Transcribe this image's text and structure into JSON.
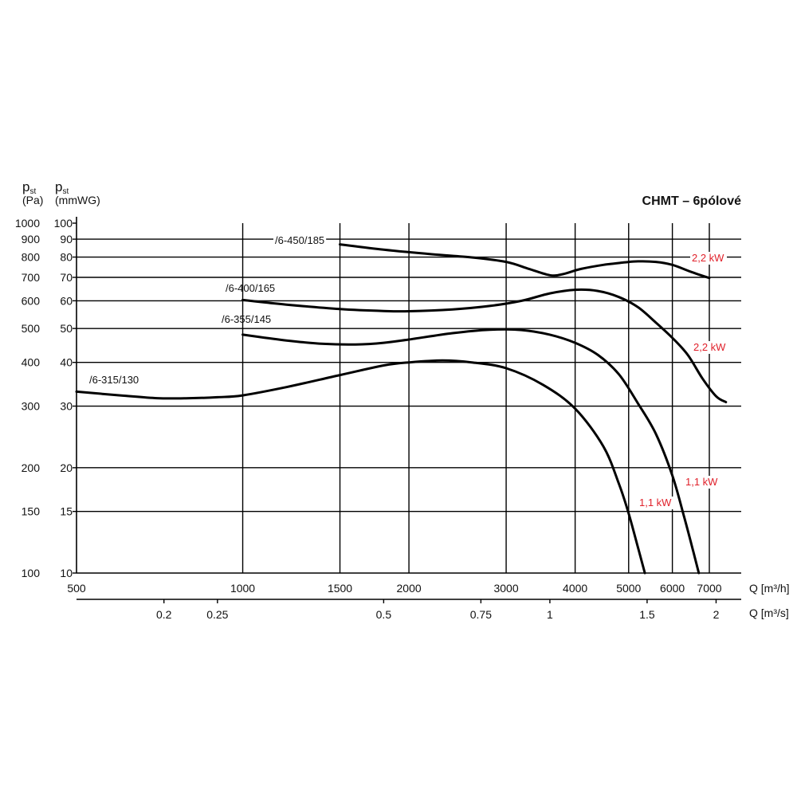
{
  "chart_data": {
    "type": "line",
    "title": "CHMT – 6pólové",
    "y_label_pa": {
      "main": "p",
      "sub": "st",
      "unit": "(Pa)"
    },
    "y_label_mmwg": {
      "main": "p",
      "sub": "st",
      "unit": "(mmWG)"
    },
    "x_label_m3h": "Q [m³/h]",
    "x_label_m3s": "Q [m³/s]",
    "x_scale": "log",
    "y_scale": "log",
    "xlim": [
      500,
      7000
    ],
    "ylim": [
      100,
      1000
    ],
    "grid": true,
    "x_ticks_m3h": [
      {
        "value": 500,
        "label": "500"
      },
      {
        "value": 1000,
        "label": "1000"
      },
      {
        "value": 1500,
        "label": "1500"
      },
      {
        "value": 2000,
        "label": "2000"
      },
      {
        "value": 3000,
        "label": "3000"
      },
      {
        "value": 4000,
        "label": "4000"
      },
      {
        "value": 5000,
        "label": "5000"
      },
      {
        "value": 6000,
        "label": "6000"
      },
      {
        "value": 7000,
        "label": "7000"
      }
    ],
    "x_ticks_m3s": [
      {
        "value": 0.2,
        "label": "0.2"
      },
      {
        "value": 0.25,
        "label": "0.25"
      },
      {
        "value": 0.5,
        "label": "0.5"
      },
      {
        "value": 0.75,
        "label": "0.75"
      },
      {
        "value": 1,
        "label": "1"
      },
      {
        "value": 1.5,
        "label": "1.5"
      },
      {
        "value": 2,
        "label": "2"
      }
    ],
    "y_ticks_pa": [
      {
        "value": 100,
        "label": "100"
      },
      {
        "value": 150,
        "label": "150"
      },
      {
        "value": 200,
        "label": "200"
      },
      {
        "value": 300,
        "label": "300"
      },
      {
        "value": 400,
        "label": "400"
      },
      {
        "value": 500,
        "label": "500"
      },
      {
        "value": 600,
        "label": "600"
      },
      {
        "value": 700,
        "label": "700"
      },
      {
        "value": 800,
        "label": "800"
      },
      {
        "value": 900,
        "label": "900"
      },
      {
        "value": 1000,
        "label": "1000"
      }
    ],
    "y_ticks_mmwg": [
      {
        "value": 10,
        "label": "10"
      },
      {
        "value": 15,
        "label": "15"
      },
      {
        "value": 20,
        "label": "20"
      },
      {
        "value": 30,
        "label": "30"
      },
      {
        "value": 40,
        "label": "40"
      },
      {
        "value": 50,
        "label": "50"
      },
      {
        "value": 60,
        "label": "60"
      },
      {
        "value": 70,
        "label": "70"
      },
      {
        "value": 80,
        "label": "80"
      },
      {
        "value": 90,
        "label": "90"
      },
      {
        "value": 100,
        "label": "100"
      }
    ],
    "gridlines_m3h": [
      1000,
      1500,
      2000,
      3000,
      4000,
      5000,
      6000,
      7000
    ],
    "gridlines_pa": [
      150,
      200,
      300,
      400,
      500,
      600,
      700,
      800,
      900
    ],
    "series": [
      {
        "name": "/6-315/130",
        "power": "1,1 kW",
        "points": [
          [
            500,
            330
          ],
          [
            600,
            322
          ],
          [
            700,
            316
          ],
          [
            800,
            316
          ],
          [
            900,
            318
          ],
          [
            1000,
            322
          ],
          [
            1200,
            340
          ],
          [
            1500,
            368
          ],
          [
            1800,
            392
          ],
          [
            2000,
            400
          ],
          [
            2300,
            405
          ],
          [
            2600,
            400
          ],
          [
            3000,
            385
          ],
          [
            3500,
            345
          ],
          [
            4000,
            295
          ],
          [
            4500,
            230
          ],
          [
            4800,
            180
          ],
          [
            5000,
            148
          ],
          [
            5200,
            118
          ],
          [
            5350,
            100
          ]
        ]
      },
      {
        "name": "/6-355/145",
        "power": "1,1 kW",
        "points": [
          [
            1000,
            480
          ],
          [
            1200,
            462
          ],
          [
            1400,
            452
          ],
          [
            1600,
            450
          ],
          [
            1800,
            455
          ],
          [
            2000,
            465
          ],
          [
            2400,
            485
          ],
          [
            2800,
            496
          ],
          [
            3200,
            495
          ],
          [
            3600,
            480
          ],
          [
            4000,
            455
          ],
          [
            4400,
            420
          ],
          [
            4800,
            370
          ],
          [
            5200,
            305
          ],
          [
            5600,
            250
          ],
          [
            6000,
            190
          ],
          [
            6300,
            145
          ],
          [
            6550,
            115
          ],
          [
            6700,
            100
          ]
        ]
      },
      {
        "name": "/6-400/165",
        "power": "2,2 kW",
        "points": [
          [
            1000,
            603
          ],
          [
            1200,
            585
          ],
          [
            1500,
            568
          ],
          [
            1800,
            561
          ],
          [
            2000,
            560
          ],
          [
            2400,
            567
          ],
          [
            2800,
            580
          ],
          [
            3200,
            600
          ],
          [
            3600,
            630
          ],
          [
            4000,
            645
          ],
          [
            4400,
            640
          ],
          [
            4800,
            615
          ],
          [
            5200,
            575
          ],
          [
            5600,
            520
          ],
          [
            6000,
            470
          ],
          [
            6400,
            420
          ],
          [
            6800,
            360
          ],
          [
            7200,
            320
          ],
          [
            7500,
            308
          ]
        ]
      },
      {
        "name": "/6-450/185",
        "power": "2,2 kW",
        "points": [
          [
            1500,
            870
          ],
          [
            1800,
            840
          ],
          [
            2200,
            815
          ],
          [
            2600,
            798
          ],
          [
            3000,
            775
          ],
          [
            3300,
            740
          ],
          [
            3600,
            710
          ],
          [
            3800,
            715
          ],
          [
            4100,
            740
          ],
          [
            4500,
            760
          ],
          [
            4900,
            772
          ],
          [
            5200,
            778
          ],
          [
            5600,
            775
          ],
          [
            6000,
            760
          ],
          [
            6500,
            725
          ],
          [
            7000,
            697
          ]
        ]
      }
    ]
  }
}
